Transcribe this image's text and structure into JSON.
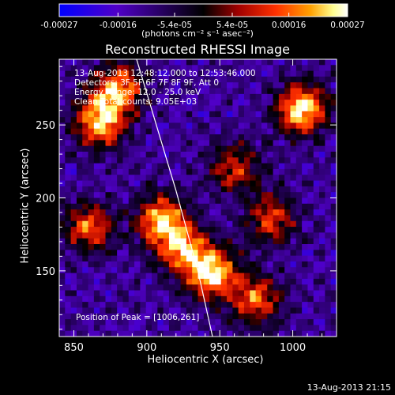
{
  "chart_data": {
    "type": "heatmap",
    "title": "Reconstructed RHESSI Image",
    "xlabel": "Heliocentric X (arcsec)",
    "ylabel": "Heliocentric Y (arcsec)",
    "xlim": [
      840,
      1030
    ],
    "ylim": [
      105,
      295
    ],
    "xticks": [
      850,
      900,
      950,
      1000
    ],
    "yticks": [
      150,
      200,
      250
    ],
    "colorbar": {
      "colormap": "hot-with-blue-negative",
      "range": [
        -0.00027,
        0.00027
      ],
      "tick_labels": [
        "-0.00027",
        "-0.00016",
        "-5.4e-05",
        "5.4e-05",
        "0.00016",
        "0.00027"
      ],
      "unit": "(photons cm⁻² s⁻¹ asec⁻²)",
      "colors": [
        "#0000ff",
        "#5a00c0",
        "#000000",
        "#900000",
        "#ff3000",
        "#ff9000",
        "#ffff80",
        "#ffffff"
      ]
    },
    "annotations": [
      "13-Aug-2013 12:48:12.000 to 12:53:46.000",
      "Detectors: 3F 5F 6F 7F 8F 9F, Att 0",
      "Energy Range: 12.0 - 25.0 keV",
      "Clean   Total counts: 9.05E+03"
    ],
    "peak_text": "Position of Peak = [1006,261]",
    "limb": {
      "x": [
        893,
        905,
        920,
        935,
        945
      ],
      "y": [
        295,
        255,
        205,
        150,
        105
      ]
    },
    "bright_regions": [
      {
        "x": 868,
        "y": 252,
        "value": 0.00024
      },
      {
        "x": 880,
        "y": 275,
        "value": 0.0002
      },
      {
        "x": 1006,
        "y": 261,
        "value": 0.00027
      },
      {
        "x": 910,
        "y": 185,
        "value": 0.00022
      },
      {
        "x": 945,
        "y": 148,
        "value": 0.00026
      },
      {
        "x": 925,
        "y": 165,
        "value": 0.00018
      },
      {
        "x": 860,
        "y": 180,
        "value": 0.00015
      },
      {
        "x": 975,
        "y": 130,
        "value": 0.00015
      },
      {
        "x": 985,
        "y": 185,
        "value": 0.00012
      },
      {
        "x": 960,
        "y": 220,
        "value": 0.0001
      }
    ]
  },
  "footer": "13-Aug-2013 21:15"
}
